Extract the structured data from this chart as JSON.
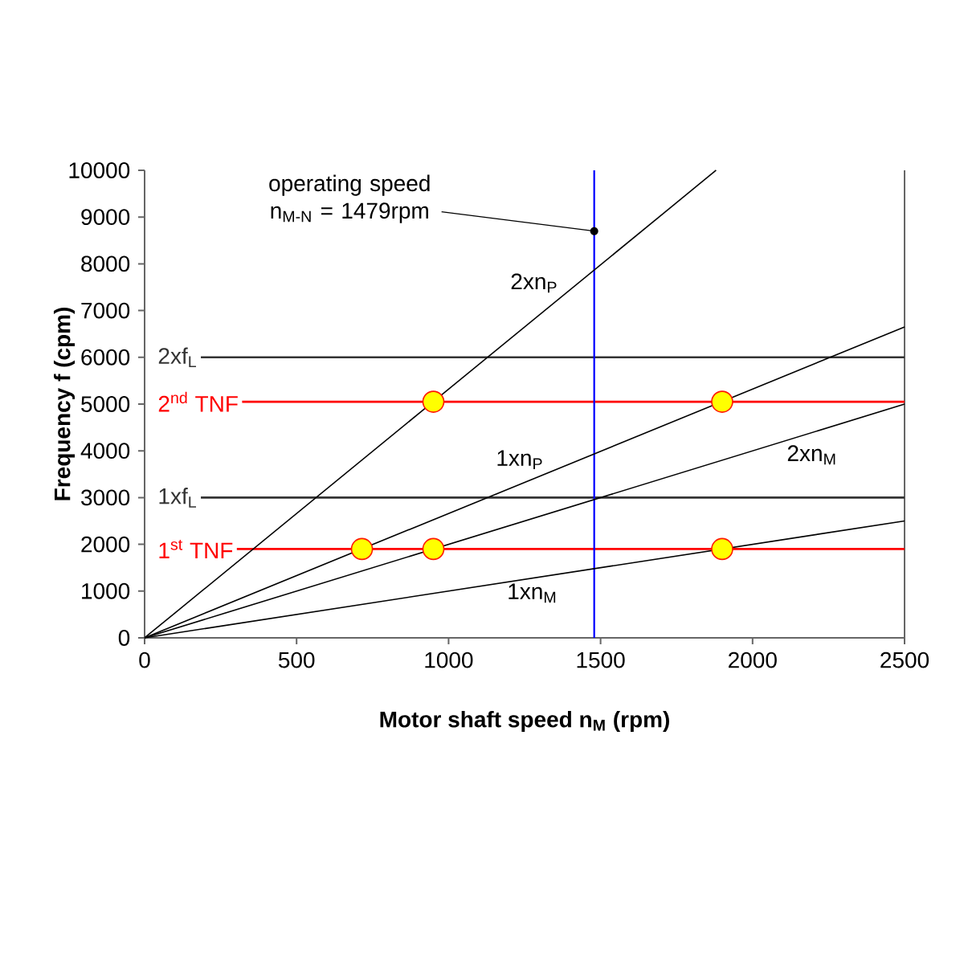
{
  "chart_data": {
    "type": "line",
    "xlabel": "Motor shaft speed n$_{M}$ (rpm)",
    "ylabel": "Frequency f (cpm)",
    "xlim": [
      0,
      2500
    ],
    "ylim": [
      0,
      10000
    ],
    "xticks": [
      0,
      500,
      1000,
      1500,
      2000,
      2500
    ],
    "yticks": [
      0,
      1000,
      2000,
      3000,
      4000,
      5000,
      6000,
      7000,
      8000,
      9000,
      10000
    ],
    "series": [
      {
        "name": "2xn$_{P}$",
        "color": "#000000",
        "x": [
          0,
          1880
        ],
        "values": [
          0,
          10000
        ]
      },
      {
        "name": "1xn$_{P}$",
        "color": "#000000",
        "x": [
          0,
          2500
        ],
        "values": [
          0,
          6650
        ]
      },
      {
        "name": "2xn$_{M}$",
        "color": "#000000",
        "x": [
          0,
          2500
        ],
        "values": [
          0,
          5000
        ]
      },
      {
        "name": "1xn$_{M}$",
        "color": "#000000",
        "x": [
          0,
          2500
        ],
        "values": [
          0,
          2500
        ]
      },
      {
        "type": "scatter",
        "color": "#ffff00",
        "marker": "circle",
        "x": [
          715,
          950,
          1900,
          950,
          1900
        ],
        "values": [
          1900,
          1900,
          1900,
          5050,
          5050
        ]
      }
    ],
    "ref_lines": [
      {
        "axis": "y",
        "value": 6000,
        "label": "2xf$_{L}$",
        "color": "#333333"
      },
      {
        "axis": "y",
        "value": 3000,
        "label": "1xf$_{L}$",
        "color": "#333333"
      },
      {
        "axis": "y",
        "value": 5050,
        "label": "2$^{nd}$ TNF",
        "color": "#ff0000"
      },
      {
        "axis": "y",
        "value": 1900,
        "label": "1$^{st}$ TNF",
        "color": "#ff0000"
      },
      {
        "axis": "x",
        "value": 1479,
        "color": "#0000ff"
      }
    ],
    "annotations": [
      {
        "text": "operating speed n$_{M-N}$ = 1479rpm",
        "x": 1479,
        "y": 8700
      }
    ]
  }
}
